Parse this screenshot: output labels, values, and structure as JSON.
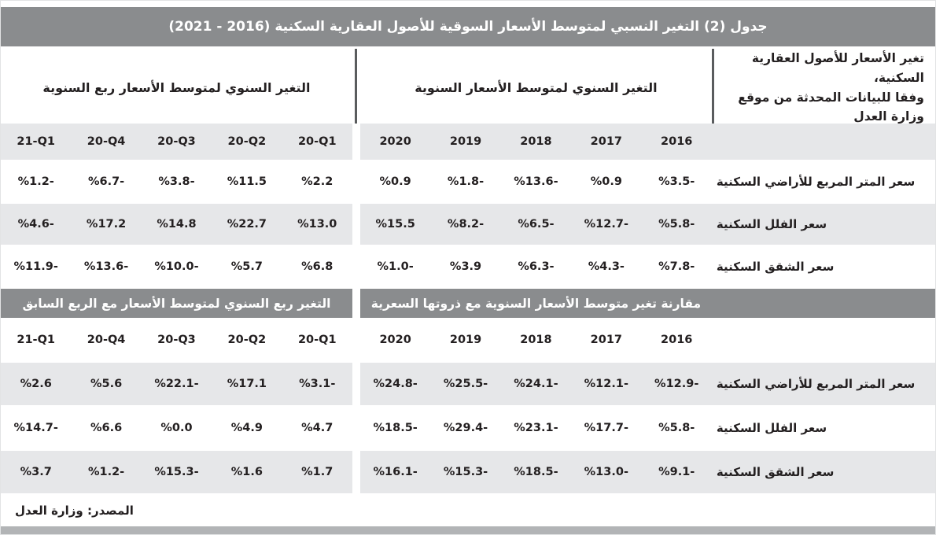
{
  "title": "جدول (2) التغير النسبي لمتوسط الأسعار السوقية للأصول العقارية السكنية (2016 - 2021)",
  "source_note": "المصدر: وزارة العدل",
  "colors": {
    "header_bar_gray": "#8a8c8e",
    "row_stripe_gray": "#e6e7e9",
    "divider_dark": "#5a5c5e",
    "bottom_strip_gray": "#b2b4b6",
    "text_black": "#231f20"
  },
  "header": {
    "quarterly_section_title": "التغير السنوي لمتوسط الأسعار ربع السنوية",
    "annual_section_title": "التغير السنوي لمتوسط الأسعار السنوية",
    "label_column_line1": "تغير الأسعار للأصول العقارية السكنية،",
    "label_column_line2": "وفقا للبيانات المحدثة من موقع وزارة العدل"
  },
  "columns": {
    "quarters": [
      "21-Q1",
      "20-Q4",
      "20-Q3",
      "20-Q2",
      "20-Q1"
    ],
    "years": [
      "2020",
      "2019",
      "2018",
      "2017",
      "2016"
    ]
  },
  "table1": {
    "rows": [
      {
        "label": "سعر المتر المربع للأراضي السكنية",
        "quarterly": [
          "%1.2-",
          "%6.7-",
          "%3.8-",
          "%11.5",
          "%2.2"
        ],
        "annual": [
          "%0.9",
          "%1.8-",
          "%13.6-",
          "%0.9",
          "%3.5-"
        ]
      },
      {
        "label": "سعر الفلل السكنية",
        "quarterly": [
          "%4.6-",
          "%17.2",
          "%14.8",
          "%22.7",
          "%13.0"
        ],
        "annual": [
          "%15.5",
          "%8.2-",
          "%6.5-",
          "%12.7-",
          "%5.8-"
        ]
      },
      {
        "label": "سعر الشقق السكنية",
        "quarterly": [
          "%11.9-",
          "%13.6-",
          "%10.0-",
          "%5.7",
          "%6.8"
        ],
        "annual": [
          "%1.0-",
          "%3.9",
          "%6.3-",
          "%4.3-",
          "%7.8-"
        ]
      }
    ]
  },
  "section2": {
    "quarterly_title": "التغير ربع السنوي لمتوسط الأسعار مع الربع السابق",
    "annual_title": "مقارنة تغير متوسط الأسعار السنوية مع ذروتها السعرية"
  },
  "table2": {
    "rows": [
      {
        "label": "سعر المتر المربع للأراضي السكنية",
        "quarterly": [
          "%2.6",
          "%5.6",
          "%22.1-",
          "%17.1",
          "%3.1-"
        ],
        "annual": [
          "%24.8-",
          "%25.5-",
          "%24.1-",
          "%12.1-",
          "%12.9-"
        ]
      },
      {
        "label": "سعر الفلل السكنية",
        "quarterly": [
          "%14.7-",
          "%6.6",
          "%0.0",
          "%4.9",
          "%4.7"
        ],
        "annual": [
          "%18.5-",
          "%29.4-",
          "%23.1-",
          "%17.7-",
          "%5.8-"
        ]
      },
      {
        "label": "سعر الشقق السكنية",
        "quarterly": [
          "%3.7",
          "%1.2-",
          "%15.3-",
          "%1.6",
          "%1.7"
        ],
        "annual": [
          "%16.1-",
          "%15.3-",
          "%18.5-",
          "%13.0-",
          "%9.1-"
        ]
      }
    ]
  }
}
